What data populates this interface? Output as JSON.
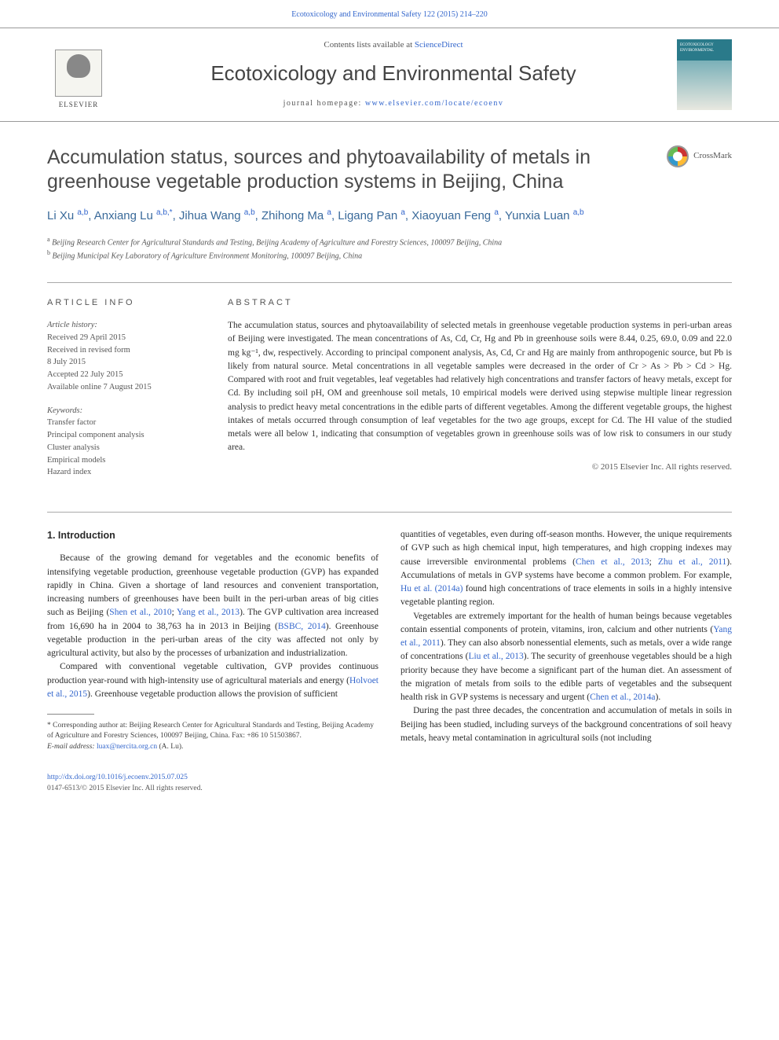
{
  "page_header": "Ecotoxicology and Environmental Safety 122 (2015) 214–220",
  "masthead": {
    "contents_prefix": "Contents lists available at ",
    "contents_link": "ScienceDirect",
    "journal_name": "Ecotoxicology and Environmental Safety",
    "homepage_prefix": "journal homepage: ",
    "homepage_url": "www.elsevier.com/locate/ecoenv",
    "elsevier_label": "ELSEVIER",
    "cover_text": "ECOTOXICOLOGY ENVIRONMENTAL"
  },
  "article": {
    "title": "Accumulation status, sources and phytoavailability of metals in greenhouse vegetable production systems in Beijing, China",
    "crossmark_label": "CrossMark",
    "authors_html": "Li Xu <sup>a,b</sup>, Anxiang Lu <sup>a,b,*</sup>, Jihua Wang <sup>a,b</sup>, Zhihong Ma <sup>a</sup>, Ligang Pan <sup>a</sup>, Xiaoyuan Feng <sup>a</sup>, Yunxia Luan <sup>a,b</sup>",
    "affiliations": [
      {
        "sup": "a",
        "text": "Beijing Research Center for Agricultural Standards and Testing, Beijing Academy of Agriculture and Forestry Sciences, 100097 Beijing, China"
      },
      {
        "sup": "b",
        "text": "Beijing Municipal Key Laboratory of Agriculture Environment Monitoring, 100097 Beijing, China"
      }
    ]
  },
  "article_info": {
    "heading": "ARTICLE INFO",
    "history_label": "Article history:",
    "history": [
      "Received 29 April 2015",
      "Received in revised form",
      "8 July 2015",
      "Accepted 22 July 2015",
      "Available online 7 August 2015"
    ],
    "keywords_label": "Keywords:",
    "keywords": [
      "Transfer factor",
      "Principal component analysis",
      "Cluster analysis",
      "Empirical models",
      "Hazard index"
    ]
  },
  "abstract": {
    "heading": "ABSTRACT",
    "text": "The accumulation status, sources and phytoavailability of selected metals in greenhouse vegetable production systems in peri-urban areas of Beijing were investigated. The mean concentrations of As, Cd, Cr, Hg and Pb in greenhouse soils were 8.44, 0.25, 69.0, 0.09 and 22.0 mg kg⁻¹, dw, respectively. According to principal component analysis, As, Cd, Cr and Hg are mainly from anthropogenic source, but Pb is likely from natural source. Metal concentrations in all vegetable samples were decreased in the order of Cr > As > Pb > Cd > Hg. Compared with root and fruit vegetables, leaf vegetables had relatively high concentrations and transfer factors of heavy metals, except for Cd. By including soil pH, OM and greenhouse soil metals, 10 empirical models were derived using stepwise multiple linear regression analysis to predict heavy metal concentrations in the edible parts of different vegetables. Among the different vegetable groups, the highest intakes of metals occurred through consumption of leaf vegetables for the two age groups, except for Cd. The HI value of the studied metals were all below 1, indicating that consumption of vegetables grown in greenhouse soils was of low risk to consumers in our study area.",
    "copyright": "© 2015 Elsevier Inc. All rights reserved."
  },
  "body": {
    "section_heading": "1. Introduction",
    "left_paras": [
      "Because of the growing demand for vegetables and the economic benefits of intensifying vegetable production, greenhouse vegetable production (GVP) has expanded rapidly in China. Given a shortage of land resources and convenient transportation, increasing numbers of greenhouses have been built in the peri-urban areas of big cities such as Beijing (Shen et al., 2010; Yang et al., 2013). The GVP cultivation area increased from 16,690 ha in 2004 to 38,763 ha in 2013 in Beijing (BSBC, 2014). Greenhouse vegetable production in the peri-urban areas of the city was affected not only by agricultural activity, but also by the processes of urbanization and industrialization.",
      "Compared with conventional vegetable cultivation, GVP provides continuous production year-round with high-intensity use of agricultural materials and energy (Holvoet et al., 2015). Greenhouse vegetable production allows the provision of sufficient"
    ],
    "right_paras": [
      "quantities of vegetables, even during off-season months. However, the unique requirements of GVP such as high chemical input, high temperatures, and high cropping indexes may cause irreversible environmental problems (Chen et al., 2013; Zhu et al., 2011). Accumulations of metals in GVP systems have become a common problem. For example, Hu et al. (2014a) found high concentrations of trace elements in soils in a highly intensive vegetable planting region.",
      "Vegetables are extremely important for the health of human beings because vegetables contain essential components of protein, vitamins, iron, calcium and other nutrients (Yang et al., 2011). They can also absorb nonessential elements, such as metals, over a wide range of concentrations (Liu et al., 2013). The security of greenhouse vegetables should be a high priority because they have become a significant part of the human diet. An assessment of the migration of metals from soils to the edible parts of vegetables and the subsequent health risk in GVP systems is necessary and urgent (Chen et al., 2014a).",
      "During the past three decades, the concentration and accumulation of metals in soils in Beijing has been studied, including surveys of the background concentrations of soil heavy metals, heavy metal contamination in agricultural soils (not including"
    ],
    "citations_left": {
      "p0": [
        "Shen et al., 2010",
        "Yang et al., 2013",
        "BSBC, 2014"
      ],
      "p1": [
        "Holvoet et al., 2015"
      ]
    },
    "citations_right": {
      "p0": [
        "Chen et al., 2013",
        "Zhu et al., 2011",
        "Hu et al. (2014a)"
      ],
      "p1": [
        "Yang et al., 2011",
        "Liu et al., 2013",
        "Chen et al., 2014a"
      ]
    }
  },
  "footnotes": {
    "corr": "* Corresponding author at: Beijing Research Center for Agricultural Standards and Testing, Beijing Academy of Agriculture and Forestry Sciences, 100097 Beijing, China. Fax: +86 10 51503867.",
    "email_label": "E-mail address: ",
    "email": "luax@nercita.org.cn",
    "email_suffix": " (A. Lu)."
  },
  "footer": {
    "doi": "http://dx.doi.org/10.1016/j.ecoenv.2015.07.025",
    "issn_line": "0147-6513/© 2015 Elsevier Inc. All rights reserved."
  },
  "colors": {
    "link": "#3366cc",
    "text": "#2a2a2a",
    "muted": "#555555",
    "rule": "#aaaaaa"
  },
  "typography": {
    "journal_name_pt": 26,
    "title_pt": 25,
    "authors_pt": 15,
    "body_pt": 11.5,
    "meta_pt": 10.5,
    "footnote_pt": 9.5
  }
}
